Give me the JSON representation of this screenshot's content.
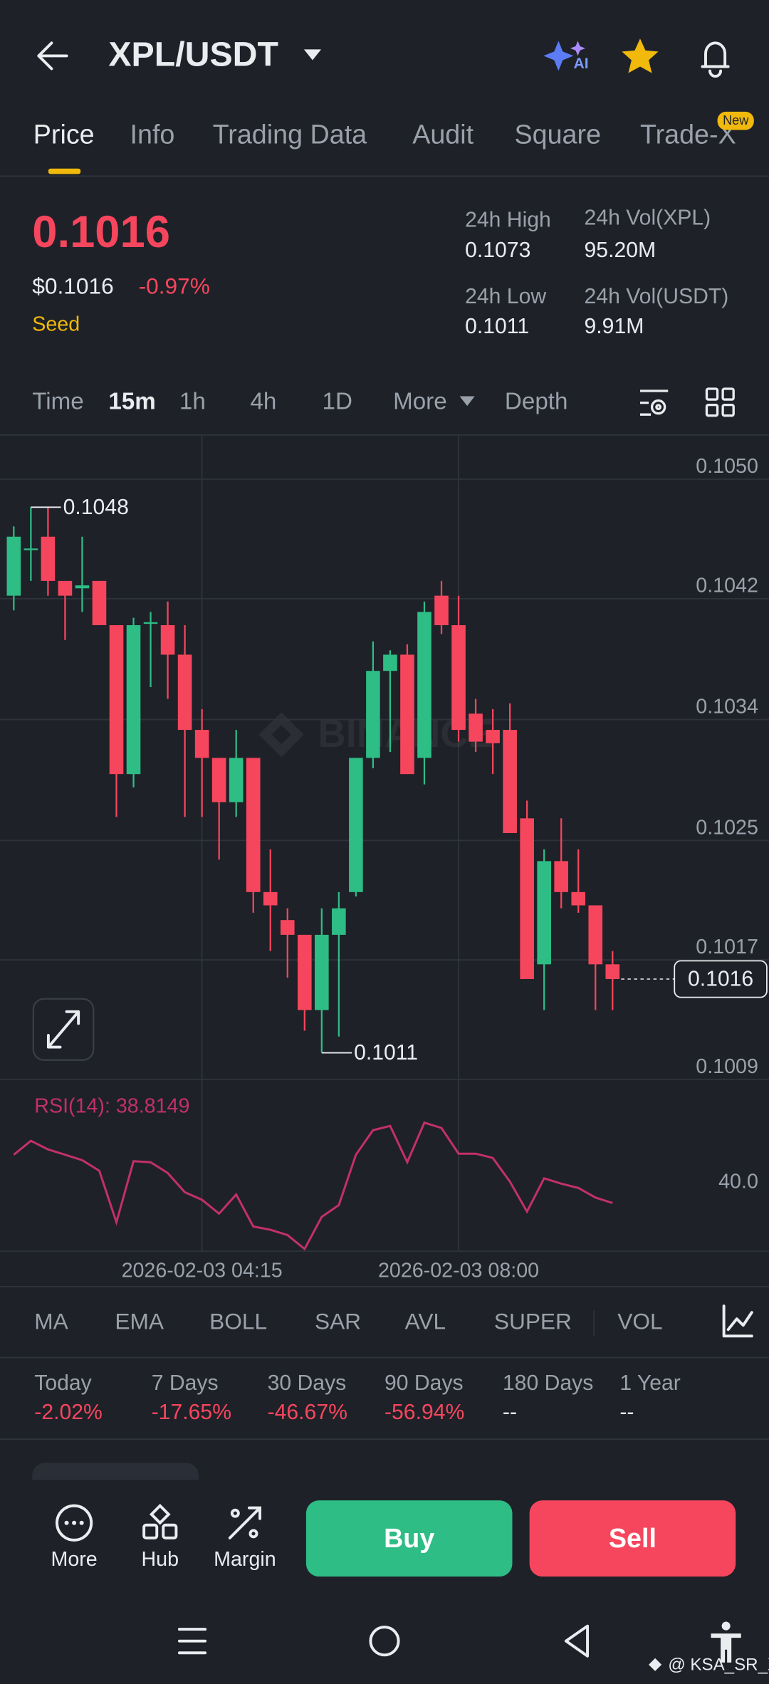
{
  "header": {
    "pair": "XPL/USDT"
  },
  "tabs": [
    "Price",
    "Info",
    "Trading Data",
    "Audit",
    "Square",
    "Trade-X"
  ],
  "tab_badge": "New",
  "ticker": {
    "price": "0.1016",
    "price_usd": "$0.1016",
    "change": "-0.97%",
    "tag": "Seed",
    "high_label": "24h High",
    "high": "0.1073",
    "low_label": "24h Low",
    "low": "0.1011",
    "vol_base_label": "24h Vol(XPL)",
    "vol_base": "95.20M",
    "vol_quote_label": "24h Vol(USDT)",
    "vol_quote": "9.91M"
  },
  "intervals": [
    "Time",
    "15m",
    "1h",
    "4h",
    "1D",
    "More",
    "Depth"
  ],
  "chart_data": [
    {
      "type": "candlestick",
      "open": [
        0.1042,
        0.10451,
        0.1046,
        0.1043,
        0.10425,
        0.1043,
        0.104,
        0.10299,
        0.10401,
        0.104,
        0.1038,
        0.10329,
        0.1031,
        0.1028,
        0.1031,
        0.10219,
        0.102,
        0.1019,
        0.10139,
        0.1019,
        0.10219,
        0.1031,
        0.10369,
        0.1038,
        0.1031,
        0.1042,
        0.104,
        0.1034,
        0.10329,
        0.10329,
        0.10269,
        0.1017,
        0.1024,
        0.10219,
        0.1021,
        0.1017
      ],
      "high": [
        0.10467,
        0.1048,
        0.1048,
        0.1043,
        0.1046,
        0.1043,
        0.104,
        0.10405,
        0.10409,
        0.10416,
        0.104,
        0.10343,
        0.1031,
        0.10329,
        0.1031,
        0.10248,
        0.10208,
        0.1019,
        0.10208,
        0.10219,
        0.1031,
        0.10389,
        0.10383,
        0.10387,
        0.10416,
        0.1043,
        0.1042,
        0.1035,
        0.10343,
        0.10347,
        0.10281,
        0.10248,
        0.10269,
        0.10248,
        0.1021,
        0.10179
      ],
      "low": [
        0.1041,
        0.1043,
        0.1042,
        0.1039,
        0.10409,
        0.104,
        0.1027,
        0.1029,
        0.10358,
        0.1035,
        0.1027,
        0.1027,
        0.10241,
        0.1027,
        0.10205,
        0.10179,
        0.10161,
        0.10125,
        0.1011,
        0.10121,
        0.10216,
        0.10303,
        0.10314,
        0.10299,
        0.10292,
        0.10394,
        0.10321,
        0.10314,
        0.10299,
        0.10259,
        0.1016,
        0.10139,
        0.10208,
        0.10205,
        0.10139,
        0.10139
      ],
      "close": [
        0.1046,
        0.10452,
        0.1043,
        0.1042,
        0.10427,
        0.104,
        0.10299,
        0.104,
        0.10402,
        0.1038,
        0.10329,
        0.1031,
        0.1028,
        0.1031,
        0.10219,
        0.1021,
        0.1019,
        0.10139,
        0.1019,
        0.10208,
        0.1031,
        0.10369,
        0.1038,
        0.10299,
        0.10409,
        0.104,
        0.10329,
        0.10321,
        0.1032,
        0.10259,
        0.1016,
        0.1024,
        0.10219,
        0.1021,
        0.1017,
        0.1016
      ],
      "up_color": "#2ebd85",
      "down_color": "#f6465d",
      "ylim": [
        0.10092,
        0.10529
      ],
      "yticks": [
        {
          "value": 0.10499,
          "label": "0.1050"
        },
        {
          "value": 0.10418,
          "label": "0.1042"
        },
        {
          "value": 0.10336,
          "label": "0.1034"
        },
        {
          "value": 0.10254,
          "label": "0.1025"
        },
        {
          "value": 0.10173,
          "label": "0.1017"
        },
        {
          "value": 0.10092,
          "label": "0.1009"
        }
      ],
      "grid": true,
      "high_annotation": "0.1048",
      "low_annotation": "0.1011",
      "last_price_label": "0.1016",
      "watermark": "BINANCE"
    },
    {
      "type": "line",
      "title": "RSI(14): 38.8149",
      "categories": [
        null,
        null,
        null,
        null,
        null,
        null,
        null,
        null,
        null,
        null,
        null,
        "2026-02-03 04:15",
        null,
        null,
        null,
        null,
        null,
        null,
        null,
        null,
        null,
        null,
        null,
        null,
        null,
        null,
        "2026-02-03 08:00",
        null,
        null,
        null,
        null,
        null,
        null,
        null,
        null,
        null
      ],
      "values": [
        41.63,
        42.44,
        41.94,
        41.63,
        41.31,
        40.69,
        37.69,
        41.25,
        41.19,
        40.56,
        39.44,
        39.0,
        38.19,
        39.31,
        37.44,
        37.25,
        36.94,
        36.13,
        38.0,
        38.69,
        41.63,
        43.06,
        43.31,
        41.19,
        43.5,
        43.19,
        41.69,
        41.69,
        41.44,
        40.06,
        38.31,
        40.25,
        39.94,
        39.69,
        39.13,
        38.81
      ],
      "color": "#c2306b",
      "ylim": [
        36.0,
        45.4
      ],
      "yticks": [
        {
          "value": 40,
          "label": "40.0"
        }
      ]
    }
  ],
  "indicators": [
    "MA",
    "EMA",
    "BOLL",
    "SAR",
    "AVL",
    "SUPER",
    "VOL"
  ],
  "performance": [
    {
      "label": "Today",
      "value": "-2.02%"
    },
    {
      "label": "7 Days",
      "value": "-17.65%"
    },
    {
      "label": "30 Days",
      "value": "-46.67%"
    },
    {
      "label": "90 Days",
      "value": "-56.94%"
    },
    {
      "label": "180 Days",
      "value": "--"
    },
    {
      "label": "1 Year",
      "value": "--"
    }
  ],
  "actions": [
    "More",
    "Hub",
    "Margin"
  ],
  "buttons": {
    "buy": "Buy",
    "sell": "Sell"
  },
  "watermark": "@ KSA_SR_X"
}
